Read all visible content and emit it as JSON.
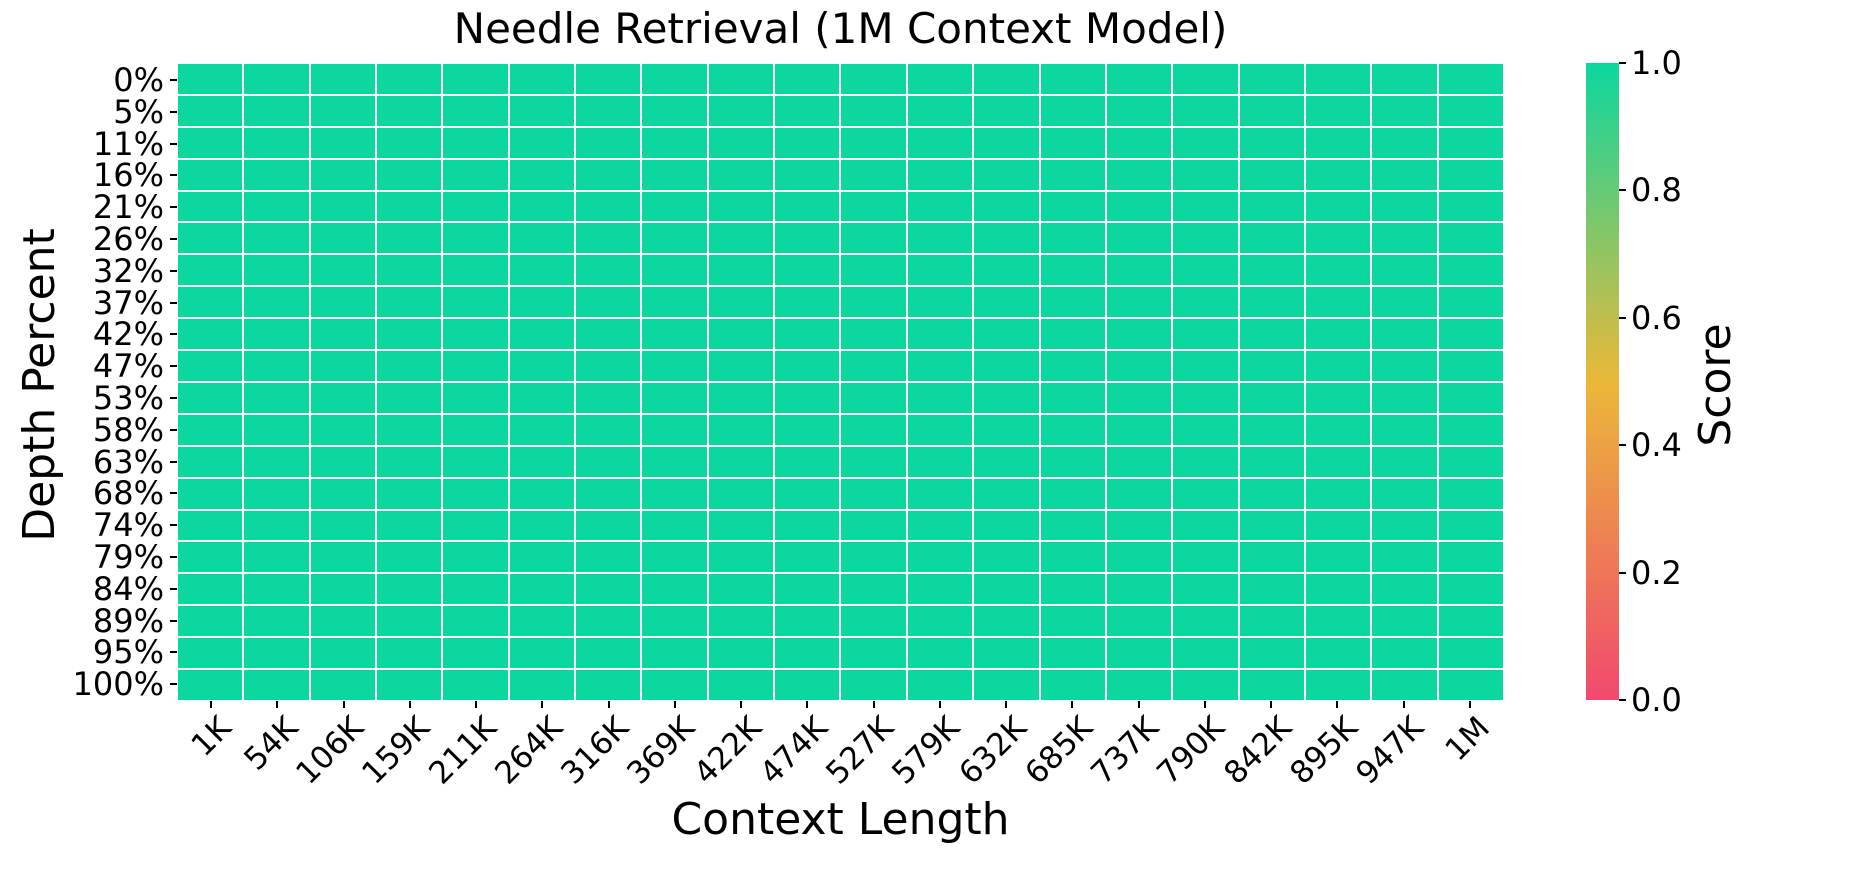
{
  "title": "Needle Retrieval (1M Context Model)",
  "chart_data": {
    "type": "heatmap",
    "title": "Needle Retrieval (1M Context Model)",
    "xlabel": "Context Length",
    "ylabel": "Depth Percent",
    "x_categories": [
      "1K",
      "54K",
      "106K",
      "159K",
      "211K",
      "264K",
      "316K",
      "369K",
      "422K",
      "474K",
      "527K",
      "579K",
      "632K",
      "685K",
      "737K",
      "790K",
      "842K",
      "895K",
      "947K",
      "1M"
    ],
    "y_categories": [
      "0%",
      "5%",
      "11%",
      "16%",
      "21%",
      "26%",
      "32%",
      "37%",
      "42%",
      "47%",
      "53%",
      "58%",
      "63%",
      "68%",
      "74%",
      "79%",
      "84%",
      "89%",
      "95%",
      "100%"
    ],
    "values": [
      [
        1.0,
        1.0,
        1.0,
        1.0,
        1.0,
        1.0,
        1.0,
        1.0,
        1.0,
        1.0,
        1.0,
        1.0,
        1.0,
        1.0,
        1.0,
        1.0,
        1.0,
        1.0,
        1.0,
        1.0
      ],
      [
        1.0,
        1.0,
        1.0,
        1.0,
        1.0,
        1.0,
        1.0,
        1.0,
        1.0,
        1.0,
        1.0,
        1.0,
        1.0,
        1.0,
        1.0,
        1.0,
        1.0,
        1.0,
        1.0,
        1.0
      ],
      [
        1.0,
        1.0,
        1.0,
        1.0,
        1.0,
        1.0,
        1.0,
        1.0,
        1.0,
        1.0,
        1.0,
        1.0,
        1.0,
        1.0,
        1.0,
        1.0,
        1.0,
        1.0,
        1.0,
        1.0
      ],
      [
        1.0,
        1.0,
        1.0,
        1.0,
        1.0,
        1.0,
        1.0,
        1.0,
        1.0,
        1.0,
        1.0,
        1.0,
        1.0,
        1.0,
        1.0,
        1.0,
        1.0,
        1.0,
        1.0,
        1.0
      ],
      [
        1.0,
        1.0,
        1.0,
        1.0,
        1.0,
        1.0,
        1.0,
        1.0,
        1.0,
        1.0,
        1.0,
        1.0,
        1.0,
        1.0,
        1.0,
        1.0,
        1.0,
        1.0,
        1.0,
        1.0
      ],
      [
        1.0,
        1.0,
        1.0,
        1.0,
        1.0,
        1.0,
        1.0,
        1.0,
        1.0,
        1.0,
        1.0,
        1.0,
        1.0,
        1.0,
        1.0,
        1.0,
        1.0,
        1.0,
        1.0,
        1.0
      ],
      [
        1.0,
        1.0,
        1.0,
        1.0,
        1.0,
        1.0,
        1.0,
        1.0,
        1.0,
        1.0,
        1.0,
        1.0,
        1.0,
        1.0,
        1.0,
        1.0,
        1.0,
        1.0,
        1.0,
        1.0
      ],
      [
        1.0,
        1.0,
        1.0,
        1.0,
        1.0,
        1.0,
        1.0,
        1.0,
        1.0,
        1.0,
        1.0,
        1.0,
        1.0,
        1.0,
        1.0,
        1.0,
        1.0,
        1.0,
        1.0,
        1.0
      ],
      [
        1.0,
        1.0,
        1.0,
        1.0,
        1.0,
        1.0,
        1.0,
        1.0,
        1.0,
        1.0,
        1.0,
        1.0,
        1.0,
        1.0,
        1.0,
        1.0,
        1.0,
        1.0,
        1.0,
        1.0
      ],
      [
        1.0,
        1.0,
        1.0,
        1.0,
        1.0,
        1.0,
        1.0,
        1.0,
        1.0,
        1.0,
        1.0,
        1.0,
        1.0,
        1.0,
        1.0,
        1.0,
        1.0,
        1.0,
        1.0,
        1.0
      ],
      [
        1.0,
        1.0,
        1.0,
        1.0,
        1.0,
        1.0,
        1.0,
        1.0,
        1.0,
        1.0,
        1.0,
        1.0,
        1.0,
        1.0,
        1.0,
        1.0,
        1.0,
        1.0,
        1.0,
        1.0
      ],
      [
        1.0,
        1.0,
        1.0,
        1.0,
        1.0,
        1.0,
        1.0,
        1.0,
        1.0,
        1.0,
        1.0,
        1.0,
        1.0,
        1.0,
        1.0,
        1.0,
        1.0,
        1.0,
        1.0,
        1.0
      ],
      [
        1.0,
        1.0,
        1.0,
        1.0,
        1.0,
        1.0,
        1.0,
        1.0,
        1.0,
        1.0,
        1.0,
        1.0,
        1.0,
        1.0,
        1.0,
        1.0,
        1.0,
        1.0,
        1.0,
        1.0
      ],
      [
        1.0,
        1.0,
        1.0,
        1.0,
        1.0,
        1.0,
        1.0,
        1.0,
        1.0,
        1.0,
        1.0,
        1.0,
        1.0,
        1.0,
        1.0,
        1.0,
        1.0,
        1.0,
        1.0,
        1.0
      ],
      [
        1.0,
        1.0,
        1.0,
        1.0,
        1.0,
        1.0,
        1.0,
        1.0,
        1.0,
        1.0,
        1.0,
        1.0,
        1.0,
        1.0,
        1.0,
        1.0,
        1.0,
        1.0,
        1.0,
        1.0
      ],
      [
        1.0,
        1.0,
        1.0,
        1.0,
        1.0,
        1.0,
        1.0,
        1.0,
        1.0,
        1.0,
        1.0,
        1.0,
        1.0,
        1.0,
        1.0,
        1.0,
        1.0,
        1.0,
        1.0,
        1.0
      ],
      [
        1.0,
        1.0,
        1.0,
        1.0,
        1.0,
        1.0,
        1.0,
        1.0,
        1.0,
        1.0,
        1.0,
        1.0,
        1.0,
        1.0,
        1.0,
        1.0,
        1.0,
        1.0,
        1.0,
        1.0
      ],
      [
        1.0,
        1.0,
        1.0,
        1.0,
        1.0,
        1.0,
        1.0,
        1.0,
        1.0,
        1.0,
        1.0,
        1.0,
        1.0,
        1.0,
        1.0,
        1.0,
        1.0,
        1.0,
        1.0,
        1.0
      ],
      [
        1.0,
        1.0,
        1.0,
        1.0,
        1.0,
        1.0,
        1.0,
        1.0,
        1.0,
        1.0,
        1.0,
        1.0,
        1.0,
        1.0,
        1.0,
        1.0,
        1.0,
        1.0,
        1.0,
        1.0
      ],
      [
        1.0,
        1.0,
        1.0,
        1.0,
        1.0,
        1.0,
        1.0,
        1.0,
        1.0,
        1.0,
        1.0,
        1.0,
        1.0,
        1.0,
        1.0,
        1.0,
        1.0,
        1.0,
        1.0,
        1.0
      ]
    ],
    "colorbar": {
      "label": "Score",
      "ticks": [
        {
          "label": "0.0",
          "value": 0.0
        },
        {
          "label": "0.2",
          "value": 0.2
        },
        {
          "label": "0.4",
          "value": 0.4
        },
        {
          "label": "0.6",
          "value": 0.6
        },
        {
          "label": "0.8",
          "value": 0.8
        },
        {
          "label": "1.0",
          "value": 1.0
        }
      ],
      "range": [
        0.0,
        1.0
      ],
      "colormap_stops": [
        "#F0496E",
        "#EBB839",
        "#0CD79F"
      ]
    },
    "grid_color": "#FFFFFF",
    "max_value_color": "#0CD79F",
    "legend_position": "right",
    "grid": true
  }
}
